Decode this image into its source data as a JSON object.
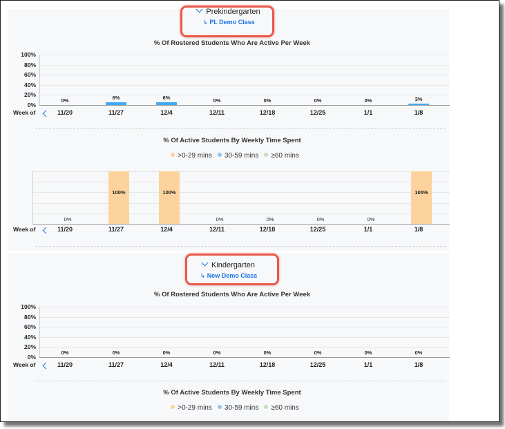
{
  "colors": {
    "active_bar": "#3fa9f5",
    "range_0_29": "#fdd39d",
    "range_30_59": "#8fc7ee",
    "range_60": "#bfe3b4",
    "link": "#1a73e8",
    "callout": "#e8584b"
  },
  "common": {
    "week_of_label": "Week of",
    "weeks": [
      "11/20",
      "11/27",
      "12/4",
      "12/11",
      "12/18",
      "12/25",
      "1/1",
      "1/8"
    ],
    "yticks": [
      "100%",
      "80%",
      "60%",
      "40%",
      "20%",
      "0%"
    ],
    "chart1_title": "% Of Rostered Students Who Are Active Per Week",
    "chart2_title": "% Of Active Students By Weekly Time Spent",
    "legend": [
      {
        "label": ">0-29 mins",
        "color": "#fdd39d"
      },
      {
        "label": "30-59 mins",
        "color": "#8fc7ee"
      },
      {
        "label": "≥60 mins",
        "color": "#bfe3b4"
      }
    ]
  },
  "sections": [
    {
      "grade": "Prekindergarten",
      "class_name": "PL Demo Class",
      "icons": {
        "expand": "chevron-down-icon",
        "link": "arrow-turn-right-icon",
        "prev": "chevron-left-icon"
      },
      "chart_data": [
        {
          "type": "bar",
          "title": "% Of Rostered Students Who Are Active Per Week",
          "xlabel": "Week of",
          "categories": [
            "11/20",
            "11/27",
            "12/4",
            "12/11",
            "12/18",
            "12/25",
            "1/1",
            "1/8"
          ],
          "values": [
            0,
            6,
            6,
            0,
            0,
            0,
            0,
            3
          ],
          "labels": [
            "0%",
            "6%",
            "6%",
            "0%",
            "0%",
            "0%",
            "0%",
            "3%"
          ],
          "ylim": [
            0,
            100
          ],
          "yticks": [
            "100%",
            "80%",
            "60%",
            "40%",
            "20%",
            "0%"
          ]
        },
        {
          "type": "bar",
          "stacked": true,
          "title": "% Of Active Students By Weekly Time Spent",
          "xlabel": "Week of",
          "categories": [
            "11/20",
            "11/27",
            "12/4",
            "12/11",
            "12/18",
            "12/25",
            "1/1",
            "1/8"
          ],
          "legend": [
            ">0-29 mins",
            "30-59 mins",
            "≥60 mins"
          ],
          "series": [
            {
              "name": ">0-29 mins",
              "values": [
                0,
                100,
                100,
                0,
                0,
                0,
                0,
                100
              ]
            },
            {
              "name": "30-59 mins",
              "values": [
                0,
                0,
                0,
                0,
                0,
                0,
                0,
                0
              ]
            },
            {
              "name": "≥60 mins",
              "values": [
                0,
                0,
                0,
                0,
                0,
                0,
                0,
                0
              ]
            }
          ],
          "labels": [
            "0%",
            "100%",
            "100%",
            "0%",
            "0%",
            "0%",
            "0%",
            "100%"
          ],
          "ylim": [
            0,
            100
          ]
        }
      ]
    },
    {
      "grade": "Kindergarten",
      "class_name": "New Demo Class",
      "icons": {
        "expand": "chevron-down-icon",
        "link": "arrow-turn-right-icon",
        "prev": "chevron-left-icon"
      },
      "chart_data": [
        {
          "type": "bar",
          "title": "% Of Rostered Students Who Are Active Per Week",
          "xlabel": "Week of",
          "categories": [
            "11/20",
            "11/27",
            "12/4",
            "12/11",
            "12/18",
            "12/25",
            "1/1",
            "1/8"
          ],
          "values": [
            0,
            0,
            0,
            0,
            0,
            0,
            0,
            0
          ],
          "labels": [
            "0%",
            "0%",
            "0%",
            "0%",
            "0%",
            "0%",
            "0%",
            "0%"
          ],
          "ylim": [
            0,
            100
          ],
          "yticks": [
            "100%",
            "80%",
            "60%",
            "40%",
            "20%",
            "0%"
          ]
        },
        {
          "type": "bar",
          "stacked": true,
          "title": "% Of Active Students By Weekly Time Spent",
          "xlabel": "Week of",
          "legend": [
            ">0-29 mins",
            "30-59 mins",
            "≥60 mins"
          ]
        }
      ]
    }
  ]
}
